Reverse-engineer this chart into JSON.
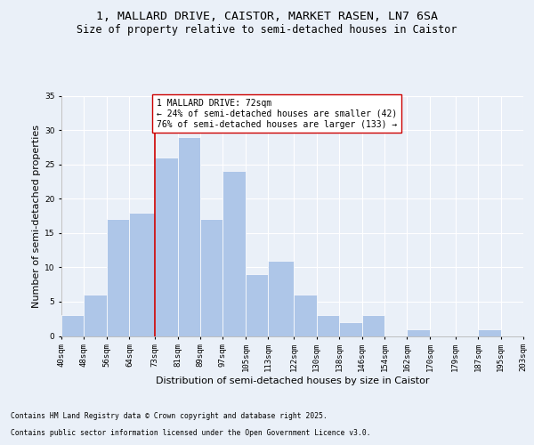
{
  "title_line1": "1, MALLARD DRIVE, CAISTOR, MARKET RASEN, LN7 6SA",
  "title_line2": "Size of property relative to semi-detached houses in Caistor",
  "xlabel": "Distribution of semi-detached houses by size in Caistor",
  "ylabel": "Number of semi-detached properties",
  "bins": [
    40,
    48,
    56,
    64,
    73,
    81,
    89,
    97,
    105,
    113,
    122,
    130,
    138,
    146,
    154,
    162,
    170,
    179,
    187,
    195,
    203
  ],
  "counts": [
    3,
    6,
    17,
    18,
    26,
    29,
    17,
    24,
    9,
    11,
    6,
    3,
    2,
    3,
    0,
    1,
    0,
    0,
    1,
    0
  ],
  "bar_color": "#aec6e8",
  "bar_edge_color": "#ffffff",
  "vline_x": 73,
  "vline_color": "#cc0000",
  "annotation_text": "1 MALLARD DRIVE: 72sqm\n← 24% of semi-detached houses are smaller (42)\n76% of semi-detached houses are larger (133) →",
  "annotation_box_color": "#ffffff",
  "annotation_box_edge_color": "#cc0000",
  "tick_labels": [
    "40sqm",
    "48sqm",
    "56sqm",
    "64sqm",
    "73sqm",
    "81sqm",
    "89sqm",
    "97sqm",
    "105sqm",
    "113sqm",
    "122sqm",
    "130sqm",
    "138sqm",
    "146sqm",
    "154sqm",
    "162sqm",
    "170sqm",
    "179sqm",
    "187sqm",
    "195sqm",
    "203sqm"
  ],
  "ylim": [
    0,
    35
  ],
  "yticks": [
    0,
    5,
    10,
    15,
    20,
    25,
    30,
    35
  ],
  "bg_color": "#eaf0f8",
  "plot_bg_color": "#eaf0f8",
  "footer_line1": "Contains HM Land Registry data © Crown copyright and database right 2025.",
  "footer_line2": "Contains public sector information licensed under the Open Government Licence v3.0.",
  "grid_color": "#ffffff",
  "title_fontsize": 9.5,
  "subtitle_fontsize": 8.5,
  "axis_label_fontsize": 8,
  "tick_fontsize": 6.5,
  "annotation_fontsize": 7,
  "footer_fontsize": 5.8
}
